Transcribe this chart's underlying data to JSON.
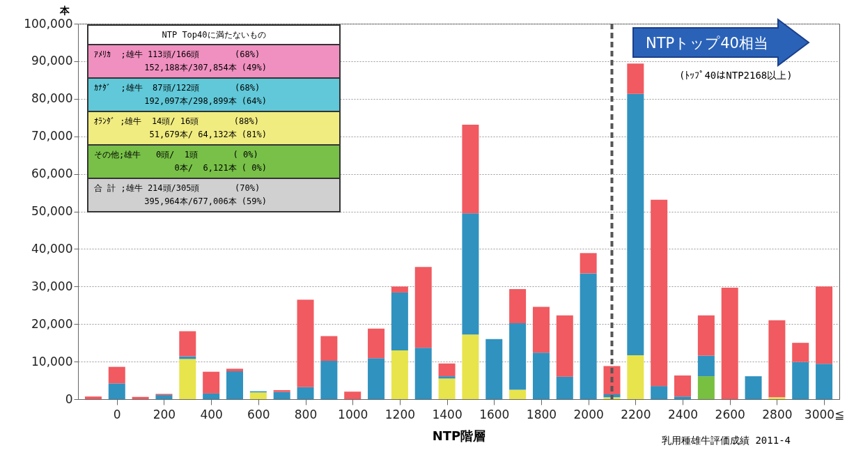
{
  "chart_data": {
    "type": "bar",
    "stacked": true,
    "xlabel": "NTP階層",
    "ylabel": "本",
    "x": [
      -100,
      0,
      100,
      200,
      300,
      400,
      500,
      600,
      700,
      800,
      900,
      1000,
      1100,
      1200,
      1300,
      1400,
      1500,
      1600,
      1700,
      1800,
      1900,
      2000,
      2100,
      2200,
      2300,
      2400,
      2500,
      2600,
      2700,
      2800,
      2900,
      3000
    ],
    "xlim": [
      -150,
      3050
    ],
    "xticks": [
      0,
      200,
      400,
      600,
      800,
      1000,
      1200,
      1400,
      1600,
      1800,
      2000,
      2200,
      2400,
      2600,
      2800,
      {
        "value": 3000,
        "label": "3000≦"
      }
    ],
    "ylim": [
      0,
      100000
    ],
    "yticks": [
      {
        "value": 0,
        "label": "0"
      },
      {
        "value": 10000,
        "label": "10,000"
      },
      {
        "value": 20000,
        "label": "20,000"
      },
      {
        "value": 30000,
        "label": "30,000"
      },
      {
        "value": 40000,
        "label": "40,000"
      },
      {
        "value": 50000,
        "label": "50,000"
      },
      {
        "value": 60000,
        "label": "60,000"
      },
      {
        "value": 70000,
        "label": "70,000"
      },
      {
        "value": 80000,
        "label": "80,000"
      },
      {
        "value": 90000,
        "label": "90,000"
      },
      {
        "value": 100000,
        "label": "100,000"
      }
    ],
    "series": [
      {
        "color": "#e8e44c",
        "values": [
          0,
          0,
          0,
          0,
          10700,
          0,
          0,
          1800,
          0,
          0,
          0,
          0,
          0,
          13000,
          0,
          5500,
          17200,
          0,
          2500,
          0,
          0,
          0,
          500,
          11700,
          0,
          0,
          0,
          0,
          0,
          500,
          0,
          0
        ]
      },
      {
        "color": "#78c040",
        "values": [
          0,
          0,
          0,
          0,
          0,
          0,
          0,
          0,
          0,
          0,
          0,
          0,
          0,
          0,
          0,
          0,
          0,
          0,
          0,
          0,
          0,
          0,
          0,
          0,
          0,
          0,
          6100,
          0,
          0,
          0,
          0,
          0
        ]
      },
      {
        "color": "#3092bf",
        "values": [
          0,
          4200,
          0,
          1100,
          700,
          1500,
          7400,
          300,
          1900,
          3200,
          10200,
          0,
          10900,
          15400,
          13700,
          600,
          32300,
          16000,
          17700,
          12400,
          6000,
          33500,
          800,
          69600,
          3500,
          700,
          5500,
          0,
          6100,
          0,
          9900,
          9400
        ]
      },
      {
        "color": "#f05a60",
        "values": [
          700,
          4400,
          600,
          300,
          6700,
          5800,
          700,
          0,
          500,
          23300,
          6600,
          2000,
          7900,
          1600,
          21500,
          3400,
          23600,
          0,
          9100,
          12200,
          16300,
          5400,
          7500,
          8100,
          49600,
          5600,
          10700,
          29700,
          0,
          20500,
          5100,
          20600
        ]
      }
    ],
    "ref_lines": [
      {
        "axis": "x",
        "value": 2100,
        "color": "#555555",
        "line_style": "dashed"
      }
    ],
    "grid": "y",
    "annotations": [
      "NTP Top40に満たないもの",
      "ｱﾒﾘｶ  ;雄牛 113頭/166頭       (68%)\n          152,188本/307,854本 (49%)",
      "ｶﾅﾀﾞ  ;雄牛  87頭/122頭       (68%)\n          192,097本/298,899本 (64%)",
      "ｵﾗﾝﾀﾞ ;雄牛  14頭/ 16頭       (88%)\n           51,679本/ 64,132本 (81%)",
      "その他;雄牛   0頭/  1頭       ( 0%)\n                0本/  6,121本 ( 0%)",
      "合 計 ;雄牛 214頭/305頭       (70%)\n          395,964本/677,006本 (59%)",
      "NTPトップ40相当",
      "(ﾄｯﾌﾟ40はNTP2168以上)",
      "乳用種雄牛評価成績 2011-4"
    ]
  }
}
